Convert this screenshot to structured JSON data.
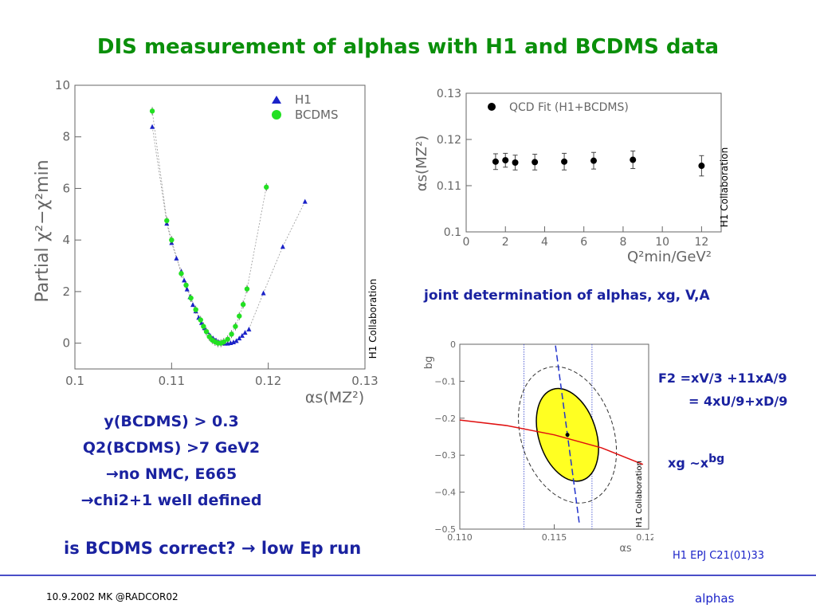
{
  "title": "DIS measurement of alphas with H1 and BCDMS data",
  "subtitle_joint": "joint determination of alphas, xg, V,A",
  "formulas": {
    "line1": "F2 =xV/3 +11xA/9",
    "line2": "= 4xU/9+xD/9",
    "xg_base": "xg ~x",
    "xg_exp": "bg"
  },
  "notes": [
    "y(BCDMS) > 0.3",
    "Q2(BCDMS) >7 GeV2",
    "→no NMC, E665",
    "→chi2+1 well defined"
  ],
  "question": "is BCDMS correct? → low Ep run",
  "reference": "H1 EPJ C21(01)33",
  "footer": {
    "left": "10.9.2002 MK @RADCOR02",
    "right": "alphas"
  },
  "colors": {
    "title": "#0a8f0a",
    "text": "#1a22c8",
    "h1": "#1a22c8",
    "bcdms": "#22e022",
    "ellipse": "#ffff22",
    "red_line": "#e01010"
  },
  "chart_data": [
    {
      "type": "scatter",
      "ylabel": "Partial χ²−χ²min",
      "xlabel": "αs(MZ²)",
      "collab_label": "H1 Collaboration",
      "xlim": [
        0.1,
        0.13
      ],
      "ylim": [
        -1,
        10
      ],
      "xticks": [
        "0.1",
        "0.11",
        "0.12",
        "0.13"
      ],
      "yticks": [
        "0",
        "2",
        "4",
        "6",
        "8",
        "10"
      ],
      "legend_position": "top-right",
      "series": [
        {
          "name": "H1",
          "marker": "triangle",
          "x": [
            0.108,
            0.1095,
            0.11,
            0.1105,
            0.111,
            0.1113,
            0.1116,
            0.1119,
            0.1122,
            0.1125,
            0.1128,
            0.1131,
            0.1134,
            0.1137,
            0.114,
            0.1143,
            0.1146,
            0.1149,
            0.1152,
            0.1155,
            0.1158,
            0.1161,
            0.1164,
            0.1167,
            0.117,
            0.1173,
            0.1176,
            0.118,
            0.1195,
            0.1215,
            0.1238
          ],
          "y": [
            8.4,
            4.65,
            3.9,
            3.3,
            2.8,
            2.45,
            2.1,
            1.8,
            1.5,
            1.25,
            1.0,
            0.8,
            0.6,
            0.45,
            0.3,
            0.2,
            0.12,
            0.05,
            0.02,
            0.0,
            0.0,
            0.02,
            0.05,
            0.1,
            0.2,
            0.3,
            0.42,
            0.55,
            1.95,
            3.75,
            5.5
          ]
        },
        {
          "name": "BCDMS",
          "marker": "circle",
          "x": [
            0.108,
            0.1095,
            0.11,
            0.111,
            0.1115,
            0.112,
            0.1125,
            0.113,
            0.1133,
            0.1136,
            0.1139,
            0.1142,
            0.1145,
            0.1148,
            0.1151,
            0.1154,
            0.1158,
            0.1162,
            0.1166,
            0.117,
            0.1174,
            0.1178,
            0.1198
          ],
          "y": [
            9.0,
            4.75,
            4.0,
            2.7,
            2.25,
            1.75,
            1.3,
            0.9,
            0.65,
            0.45,
            0.25,
            0.12,
            0.05,
            0.0,
            0.0,
            0.05,
            0.15,
            0.35,
            0.65,
            1.05,
            1.5,
            2.1,
            6.05
          ]
        }
      ]
    },
    {
      "type": "scatter",
      "ylabel": "αs(MZ²)",
      "xlabel": "Q²min/GeV²",
      "collab_label": "H1 Collaboration",
      "xlim": [
        0,
        13
      ],
      "ylim": [
        0.1,
        0.13
      ],
      "xticks": [
        "0",
        "2",
        "4",
        "6",
        "8",
        "10",
        "12"
      ],
      "yticks": [
        "0.1",
        "0.11",
        "0.12",
        "0.13"
      ],
      "legend_position": "top-left",
      "series": [
        {
          "name": "QCD Fit (H1+BCDMS)",
          "x": [
            1.5,
            2,
            2.5,
            3.5,
            5,
            6.5,
            8.5,
            12
          ],
          "y": [
            0.1152,
            0.1155,
            0.115,
            0.1151,
            0.1152,
            0.1154,
            0.1156,
            0.1143
          ],
          "err": [
            0.0017,
            0.0015,
            0.0016,
            0.0017,
            0.0018,
            0.0018,
            0.0019,
            0.0022
          ]
        }
      ]
    },
    {
      "type": "scatter",
      "ylabel": "bg",
      "xlabel": "αs",
      "collab_label": "H1 Collaboration",
      "xlim": [
        0.11,
        0.12
      ],
      "ylim": [
        -0.5,
        0
      ],
      "xticks": [
        "0.110",
        "0.115",
        "0.120"
      ],
      "yticks": [
        "0",
        "−0.1",
        "−0.2",
        "−0.3",
        "−0.4",
        "−0.5"
      ],
      "center": {
        "x": 0.1157,
        "y": -0.245
      },
      "vertical_lines": [
        0.1134,
        0.117
      ],
      "red_curve": {
        "x": [
          0.11,
          0.1125,
          0.115,
          0.1175,
          0.1197
        ],
        "y": [
          -0.205,
          -0.22,
          -0.245,
          -0.28,
          -0.325
        ]
      }
    }
  ]
}
